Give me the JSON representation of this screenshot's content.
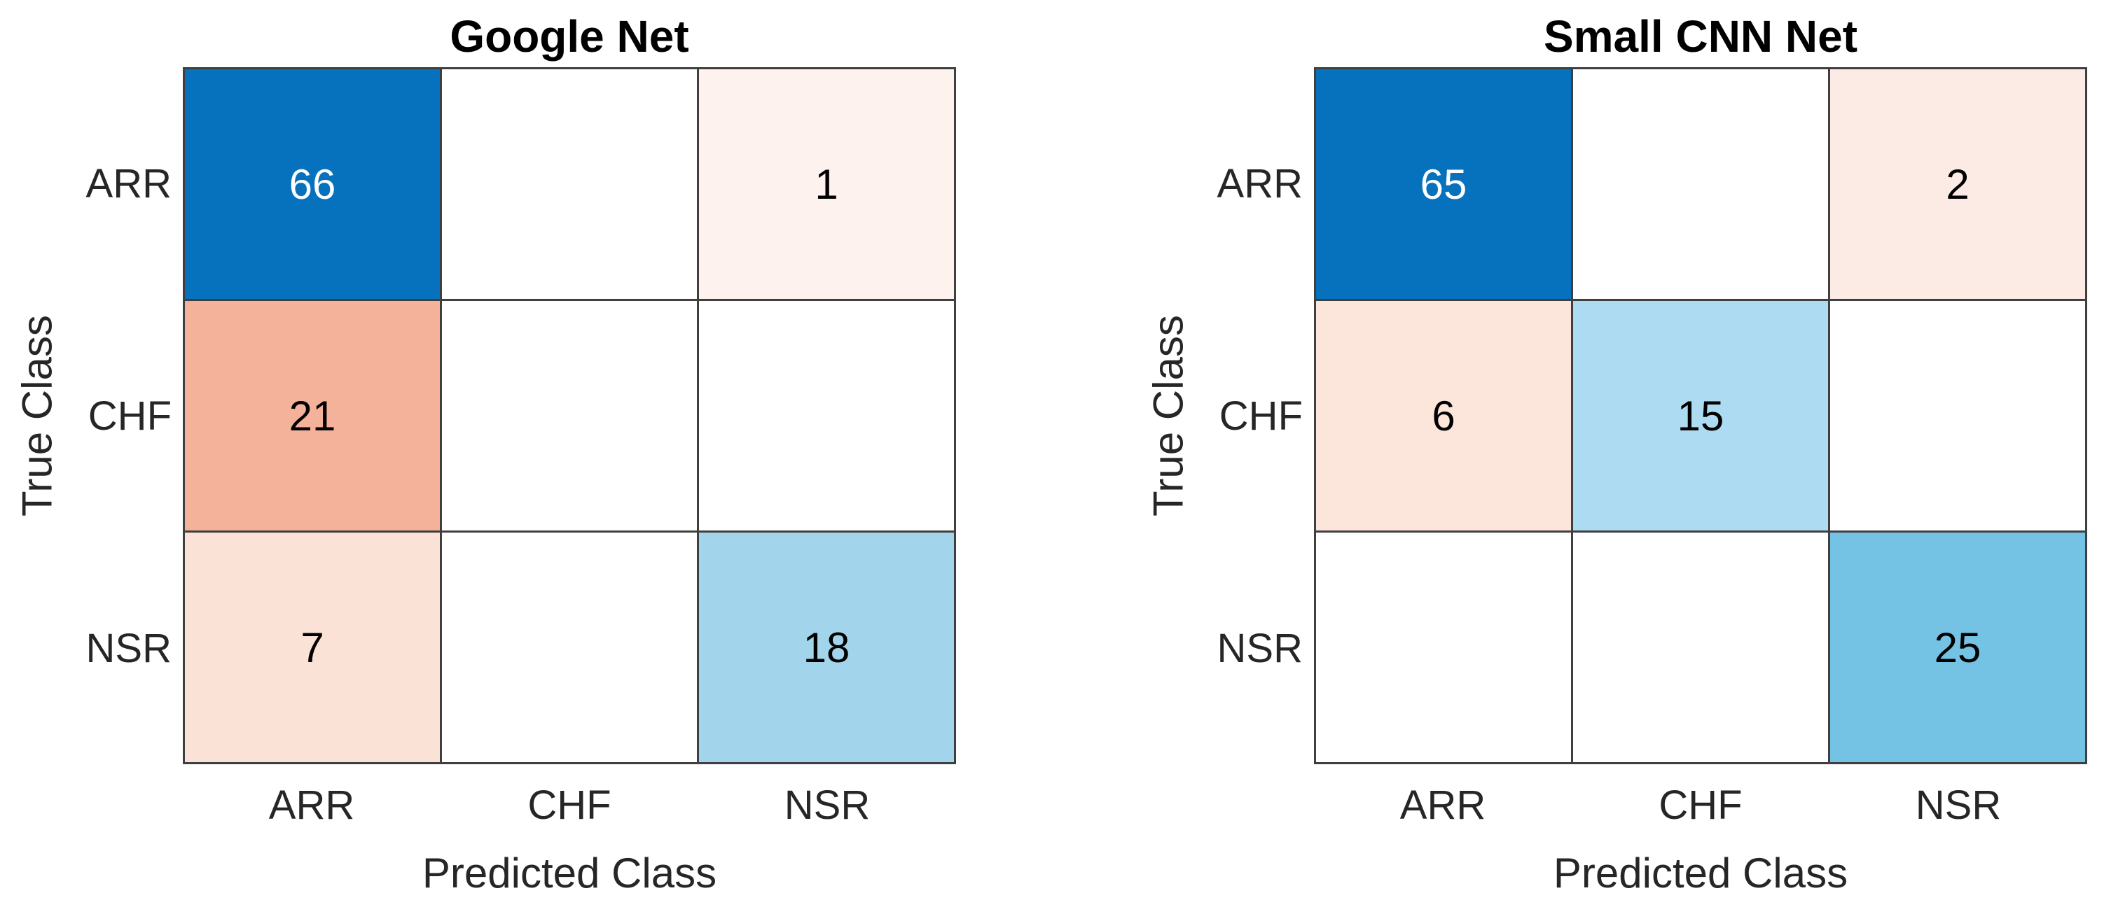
{
  "colors": {
    "background": "#ffffff",
    "grid_line": "#3f3f3f",
    "diagonal_base_blue": "#0672bd",
    "offdiagonal_base_red": "#d95319",
    "label_text": "#262626"
  },
  "chart_data": [
    {
      "type": "heatmap",
      "subtype": "confusion-matrix",
      "title": "Google Net",
      "xlabel": "Predicted Class",
      "ylabel": "True Class",
      "x_categories": [
        "ARR",
        "CHF",
        "NSR"
      ],
      "y_categories": [
        "ARR",
        "CHF",
        "NSR"
      ],
      "values": [
        [
          66,
          null,
          1
        ],
        [
          21,
          null,
          null
        ],
        [
          7,
          null,
          18
        ]
      ],
      "cell_colors": [
        [
          "#0672bd",
          "#ffffff",
          "#fdf2ed"
        ],
        [
          "#f5b29a",
          "#ffffff",
          "#ffffff"
        ],
        [
          "#fbe2d6",
          "#ffffff",
          "#a2d4eb"
        ]
      ],
      "text_colors": [
        [
          "#ffffff",
          "#000000",
          "#000000"
        ],
        [
          "#000000",
          "#000000",
          "#000000"
        ],
        [
          "#000000",
          "#000000",
          "#000000"
        ]
      ],
      "grid": true,
      "legend": "none"
    },
    {
      "type": "heatmap",
      "subtype": "confusion-matrix",
      "title": "Small CNN Net",
      "xlabel": "Predicted Class",
      "ylabel": "True Class",
      "x_categories": [
        "ARR",
        "CHF",
        "NSR"
      ],
      "y_categories": [
        "ARR",
        "CHF",
        "NSR"
      ],
      "values": [
        [
          65,
          null,
          2
        ],
        [
          6,
          15,
          null
        ],
        [
          null,
          null,
          25
        ]
      ],
      "cell_colors": [
        [
          "#0672bd",
          "#ffffff",
          "#fcebe4"
        ],
        [
          "#fce5da",
          "#addcf2",
          "#ffffff"
        ],
        [
          "#ffffff",
          "#ffffff",
          "#74c2e4"
        ]
      ],
      "text_colors": [
        [
          "#ffffff",
          "#000000",
          "#000000"
        ],
        [
          "#000000",
          "#000000",
          "#000000"
        ],
        [
          "#000000",
          "#000000",
          "#000000"
        ]
      ],
      "grid": true,
      "legend": "none"
    }
  ]
}
